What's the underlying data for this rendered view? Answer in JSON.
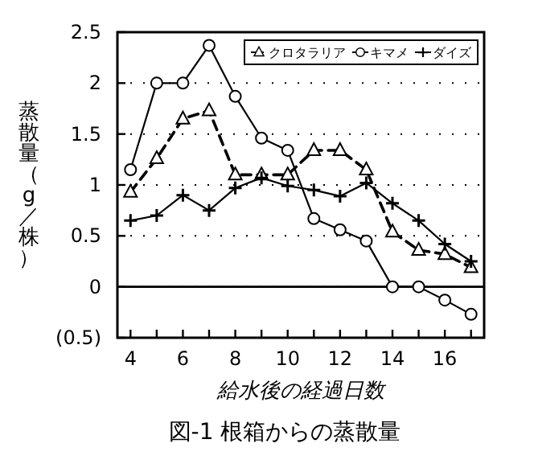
{
  "chart_data": {
    "type": "line",
    "title": "図-1 根箱からの蒸散量",
    "xlabel": "給水後の経過日数",
    "ylabel": "蒸散量（g／株）",
    "x": [
      4,
      5,
      6,
      7,
      8,
      9,
      10,
      11,
      12,
      13,
      14,
      15,
      16,
      17
    ],
    "series": [
      {
        "name": "クロタラリア",
        "color": "#000000",
        "marker": "triangle",
        "line_style": "dashed",
        "values": [
          0.93,
          1.26,
          1.65,
          1.73,
          1.1,
          1.1,
          1.1,
          1.34,
          1.34,
          1.15,
          0.54,
          0.36,
          0.32,
          0.19
        ]
      },
      {
        "name": "キマメ",
        "color": "#000000",
        "marker": "circle",
        "line_style": "solid",
        "values": [
          1.15,
          2.0,
          2.0,
          2.37,
          1.87,
          1.46,
          1.34,
          0.67,
          0.56,
          0.45,
          0.0,
          0.0,
          -0.13,
          -0.27
        ]
      },
      {
        "name": "ダイズ",
        "color": "#000000",
        "marker": "cross",
        "line_style": "solid",
        "values": [
          0.65,
          0.7,
          0.9,
          0.75,
          0.97,
          1.07,
          0.99,
          0.95,
          0.89,
          1.02,
          0.82,
          0.65,
          0.42,
          0.25
        ]
      }
    ],
    "xlim": [
      3.5,
      17.5
    ],
    "xticks": [
      4,
      {
        "value": 5,
        "label": null
      },
      6,
      {
        "value": 7,
        "label": null
      },
      8,
      {
        "value": 9,
        "label": null
      },
      10,
      {
        "value": 11,
        "label": null
      },
      12,
      {
        "value": 13,
        "label": null
      },
      14,
      {
        "value": 15,
        "label": null
      },
      16,
      {
        "value": 17,
        "label": null
      }
    ],
    "ylim": [
      -0.5,
      2.5
    ],
    "yticks": [
      {
        "value": -0.5,
        "label": "(0.5)"
      },
      0,
      0.5,
      1,
      1.5,
      2,
      2.5
    ],
    "ref_lines": [
      {
        "axis": "y",
        "value": 0,
        "color": "#000000",
        "line_style": "solid"
      }
    ],
    "grid": "y",
    "legend": "top right"
  }
}
